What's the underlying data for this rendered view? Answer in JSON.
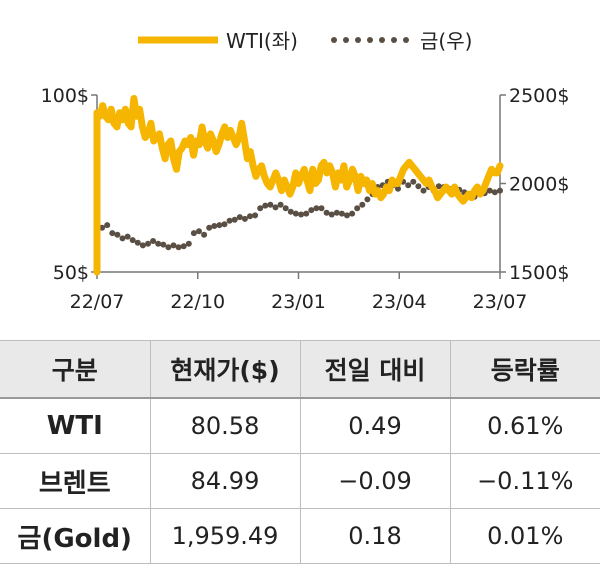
{
  "chart_data": {
    "type": "line",
    "legend": {
      "placement": "top-center"
    },
    "x_ticks": [
      "22/07",
      "22/10",
      "23/01",
      "23/04",
      "23/07"
    ],
    "y_left": {
      "ticks": [
        "100$",
        "50$"
      ],
      "range": [
        50,
        100
      ]
    },
    "y_right": {
      "ticks": [
        "2500$",
        "2000$",
        "1500$"
      ],
      "range": [
        1500,
        2500
      ]
    },
    "colors": {
      "wti": "#f5b500",
      "gold": "#5a4f44",
      "axis": "#777777"
    },
    "series": [
      {
        "name": "WTI(좌)",
        "axis": "left",
        "style": "solid",
        "values": [
          95,
          94,
          97,
          94,
          93,
          96,
          92,
          91,
          95,
          93,
          96,
          92,
          91,
          99,
          94,
          96,
          91,
          88,
          89,
          92,
          87,
          88,
          89,
          85,
          82,
          86,
          87,
          82,
          79,
          84,
          85,
          87,
          86,
          88,
          83,
          87,
          86,
          91,
          87,
          85,
          89,
          87,
          84,
          86,
          89,
          91,
          88,
          90,
          88,
          86,
          88,
          92,
          87,
          82,
          84,
          80,
          77,
          79,
          80,
          77,
          75,
          74,
          76,
          78,
          76,
          73,
          76,
          74,
          72,
          74,
          78,
          75,
          77,
          79,
          76,
          73,
          79,
          75,
          76,
          80,
          81,
          78,
          80,
          78,
          74,
          78,
          76,
          80,
          74,
          76,
          79,
          77,
          73,
          77,
          75,
          76,
          73,
          75,
          72,
          73,
          71,
          72,
          74,
          73,
          76,
          75,
          75,
          77,
          79,
          80,
          81,
          80,
          79,
          78,
          77,
          76,
          75,
          76,
          74,
          73,
          71,
          72,
          73,
          74,
          73,
          72,
          74,
          72,
          71,
          70,
          71,
          72,
          71,
          73,
          74,
          72,
          73,
          75,
          77,
          79,
          78,
          78,
          80
        ]
      },
      {
        "name": "금(우)",
        "axis": "right",
        "style": "dotted",
        "values": [
          1735,
          1750,
          1765,
          1720,
          1710,
          1690,
          1700,
          1680,
          1665,
          1650,
          1660,
          1675,
          1660,
          1655,
          1640,
          1650,
          1640,
          1645,
          1660,
          1720,
          1730,
          1710,
          1750,
          1760,
          1765,
          1770,
          1790,
          1795,
          1810,
          1800,
          1815,
          1820,
          1860,
          1875,
          1880,
          1865,
          1880,
          1860,
          1840,
          1830,
          1825,
          1830,
          1850,
          1860,
          1860,
          1835,
          1825,
          1835,
          1830,
          1820,
          1830,
          1860,
          1880,
          1910,
          1940,
          1980,
          1990,
          2010,
          1990,
          1970,
          2010,
          1990,
          2010,
          1985,
          1960,
          1980,
          1960,
          1985,
          1980,
          1970,
          1950,
          1965,
          1950,
          1940,
          1925,
          1940,
          1945,
          1960,
          1950,
          1960
        ]
      }
    ]
  },
  "table": {
    "headers": [
      "구분",
      "현재가($)",
      "전일 대비",
      "등락률"
    ],
    "rows": [
      [
        "WTI",
        "80.58",
        "0.49",
        "0.61%"
      ],
      [
        "브렌트",
        "84.99",
        "−0.09",
        "−0.11%"
      ],
      [
        "금(Gold)",
        "1,959.49",
        "0.18",
        "0.01%"
      ]
    ]
  }
}
